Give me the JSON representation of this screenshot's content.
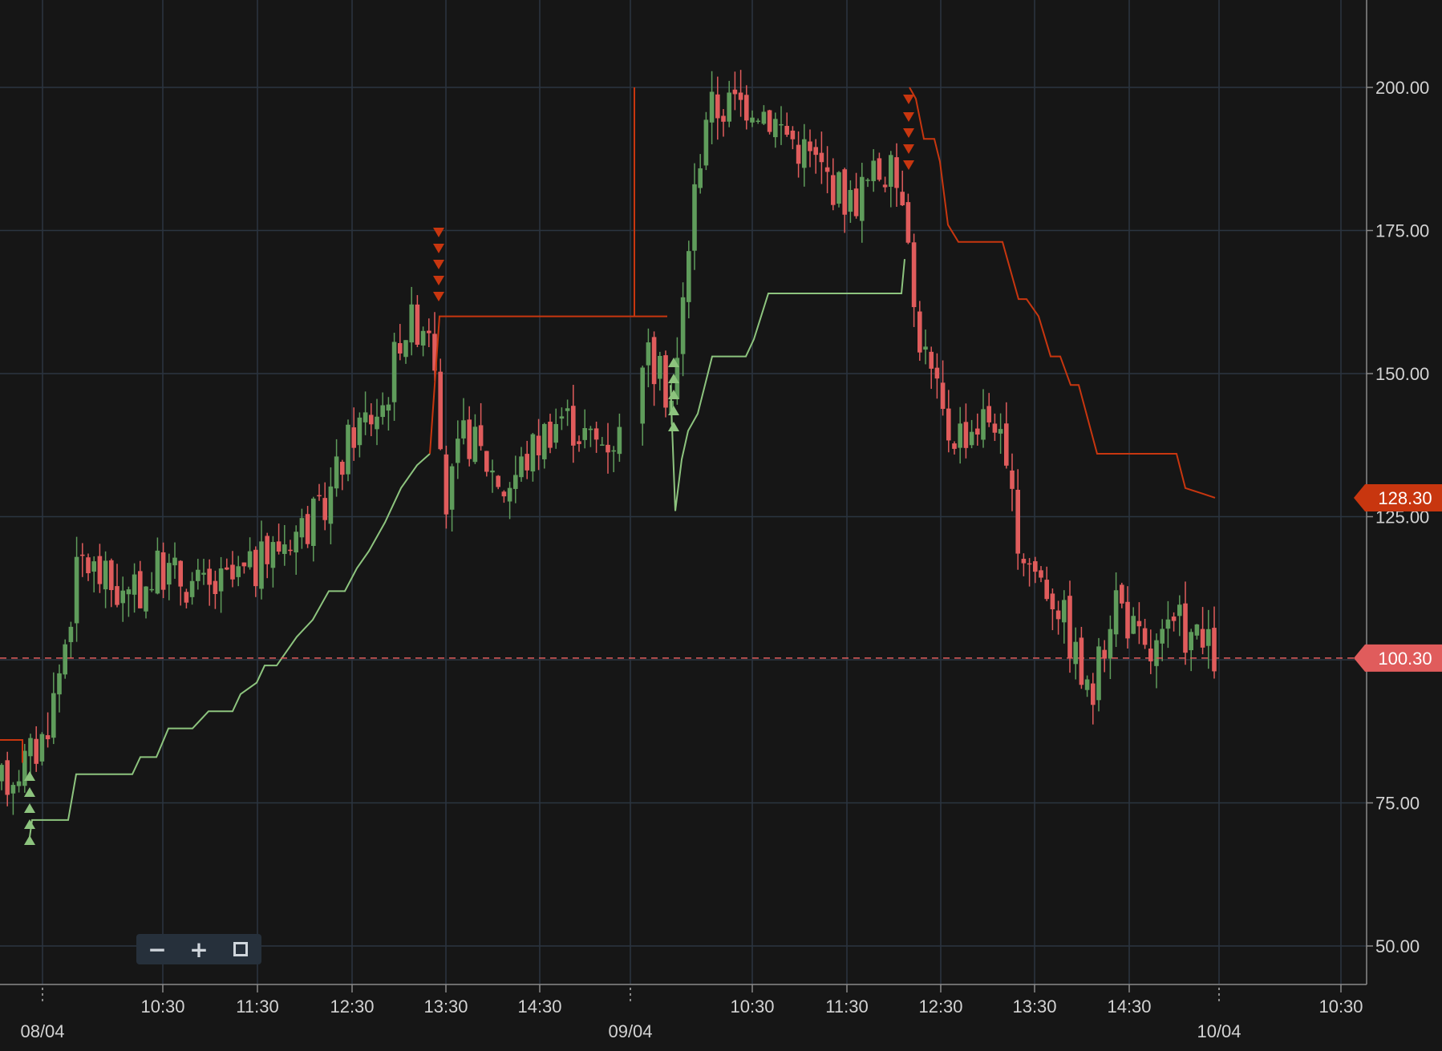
{
  "chart_data": {
    "type": "candlestick",
    "title": "",
    "xlabel": "",
    "ylabel": "",
    "ylim": [
      40.0,
      212.0
    ],
    "grid": true,
    "y_ticks": [
      "50.00",
      "75.00",
      "100.00",
      "125.00",
      "150.00",
      "175.00",
      "200.00"
    ],
    "y_tick_values": [
      50,
      75,
      100,
      125,
      150,
      175,
      200
    ],
    "x_time_ticks": [
      "10:30",
      "11:30",
      "12:30",
      "13:30",
      "14:30",
      "10:30",
      "11:30",
      "12:30",
      "13:30",
      "14:30",
      "10:30"
    ],
    "x_date_ticks": [
      "08/04",
      "09/04",
      "10/04"
    ],
    "price_tags": [
      {
        "label": "128.30",
        "value": 128.3,
        "color": "#c8360f"
      },
      {
        "label": "100.30",
        "value": 100.3,
        "color": "#e05c5c"
      }
    ],
    "current_price_line": 100.3,
    "colors": {
      "up": "#5f9c5b",
      "down": "#e05c5c",
      "stop_long": "#8dc47e",
      "stop_short": "#c8360f",
      "grid": "#2b3540",
      "axis_text": "#d3d3d3"
    },
    "series": [
      {
        "type": "candles",
        "seed": 17
      }
    ]
  },
  "zoom_controls": {
    "zoom_out": "−",
    "zoom_in": "+"
  }
}
